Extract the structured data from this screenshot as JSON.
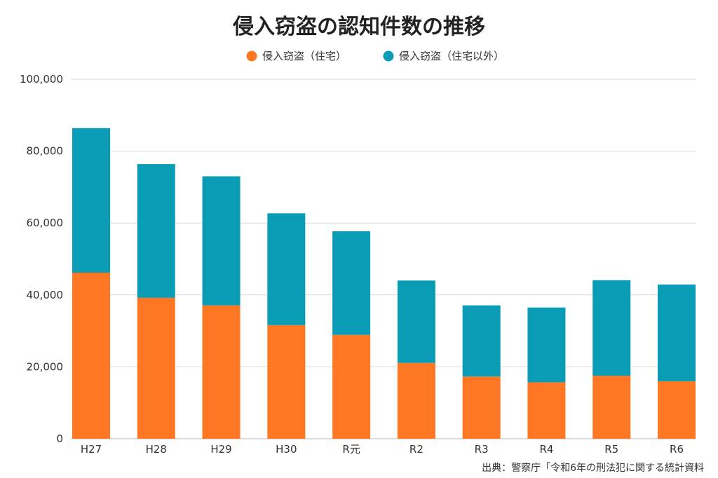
{
  "chart_data": {
    "type": "bar",
    "stacked": true,
    "title": "侵入窃盗の認知件数の推移",
    "xlabel": "",
    "ylabel": "",
    "categories": [
      "H27",
      "H28",
      "H29",
      "H30",
      "R元",
      "R2",
      "R3",
      "R4",
      "R5",
      "R6"
    ],
    "series": [
      {
        "name": "侵入窃盗（住宅）",
        "color": "#ff7722",
        "values": [
          46200,
          39200,
          37100,
          31600,
          28900,
          21100,
          17300,
          15700,
          17500,
          16000
        ]
      },
      {
        "name": "侵入窃盗（住宅以外）",
        "color": "#0a9bb5",
        "values": [
          40200,
          37200,
          35900,
          31100,
          28800,
          22900,
          19800,
          20800,
          26600,
          26900
        ]
      }
    ],
    "ylim": [
      0,
      100000
    ],
    "yticks": [
      0,
      20000,
      40000,
      60000,
      80000,
      100000
    ],
    "ytick_labels": [
      "0",
      "20,000",
      "40,000",
      "60,000",
      "80,000",
      "100,000"
    ],
    "grid": true,
    "legend": "top-center",
    "source_note": "出典：警察庁「令和6年の刑法犯に関する統計資料"
  }
}
